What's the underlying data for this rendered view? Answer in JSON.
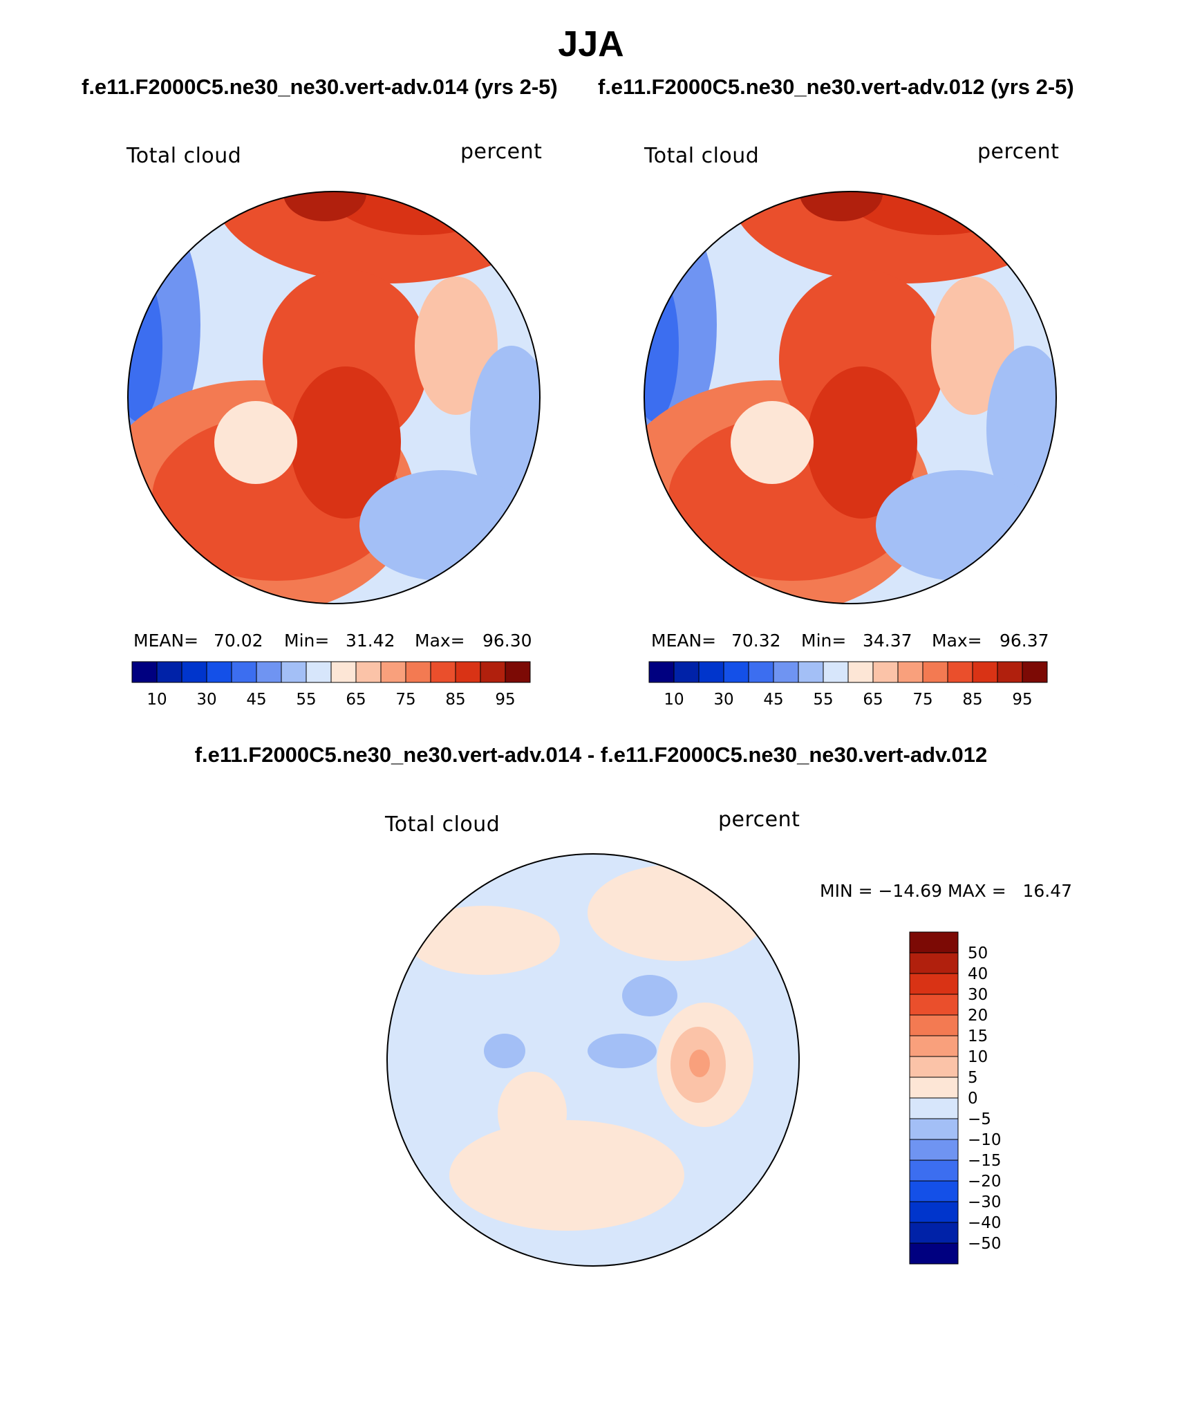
{
  "title": "JJA",
  "panels": [
    {
      "case": "f.e11.F2000C5.ne30_ne30.vert-adv.014 (yrs 2-5)",
      "variable": "Total cloud",
      "units": "percent",
      "mean_label": "MEAN=",
      "mean": "70.02",
      "min_label": "Min=",
      "min": "31.42",
      "max_label": "Max=",
      "max": "96.30"
    },
    {
      "case": "f.e11.F2000C5.ne30_ne30.vert-adv.012 (yrs 2-5)",
      "variable": "Total cloud",
      "units": "percent",
      "mean_label": "MEAN=",
      "mean": "70.32",
      "min_label": "Min=",
      "min": "34.37",
      "max_label": "Max=",
      "max": "96.37"
    }
  ],
  "diff": {
    "title": "f.e11.F2000C5.ne30_ne30.vert-adv.014 - f.e11.F2000C5.ne30_ne30.vert-adv.012",
    "variable": "Total cloud",
    "units": "percent",
    "minmax": "MIN = −14.69 MAX =   16.47"
  },
  "colorbar_main": {
    "colors": [
      "#000080",
      "#0022a8",
      "#0035cc",
      "#1450e8",
      "#3c6ef0",
      "#6f94f2",
      "#a3bff6",
      "#d7e6fb",
      "#fde6d6",
      "#fbc3a8",
      "#f9a07c",
      "#f37a52",
      "#ea4f2c",
      "#d93315",
      "#b1200d",
      "#7c0a05"
    ],
    "labels": [
      "10",
      "30",
      "45",
      "55",
      "65",
      "75",
      "85",
      "95"
    ]
  },
  "colorbar_diff": {
    "colors": [
      "#7c0a05",
      "#b1200d",
      "#d93315",
      "#ea4f2c",
      "#f37a52",
      "#f9a07c",
      "#fbc3a8",
      "#fde6d6",
      "#d7e6fb",
      "#a3bff6",
      "#6f94f2",
      "#3c6ef0",
      "#1450e8",
      "#0035cc",
      "#0022a8",
      "#000080"
    ],
    "labels": [
      "50",
      "40",
      "30",
      "20",
      "15",
      "10",
      "5",
      "0",
      "−5",
      "−10",
      "−15",
      "−20",
      "−30",
      "−40",
      "−50"
    ]
  }
}
